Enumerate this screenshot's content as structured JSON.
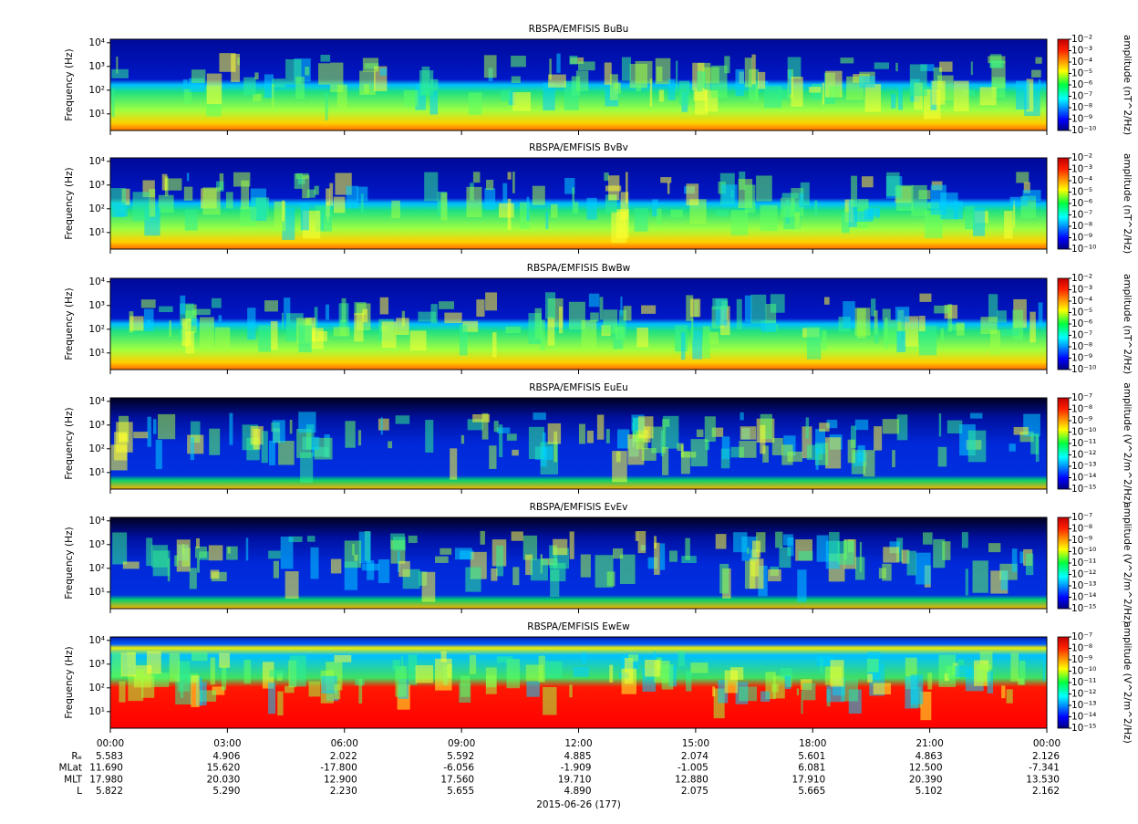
{
  "chart_data": [
    {
      "type": "spectrogram",
      "title": "RBSPA/EMFISIS  BuBu",
      "ylabel": "Frequency (Hz)",
      "log_y": true,
      "ylim": [
        2,
        14000
      ],
      "yticks": [
        {
          "value": 10,
          "label": "10¹"
        },
        {
          "value": 100,
          "label": "10²"
        },
        {
          "value": 1000,
          "label": "10³"
        },
        {
          "value": 10000,
          "label": "10⁴"
        }
      ],
      "colorbar": {
        "label": "amplitude (nT^2/Hz)",
        "lim": [
          1e-10,
          0.01
        ],
        "ticks": [
          {
            "value": 1e-10,
            "label": "10⁻¹⁰"
          },
          {
            "value": 1e-09,
            "label": "10⁻⁹"
          },
          {
            "value": 1e-08,
            "label": "10⁻⁸"
          },
          {
            "value": 1e-07,
            "label": "10⁻⁷"
          },
          {
            "value": 1e-06,
            "label": "10⁻⁶"
          },
          {
            "value": 1e-05,
            "label": "10⁻⁵"
          },
          {
            "value": 0.0001,
            "label": "10⁻⁴"
          },
          {
            "value": 0.001,
            "label": "10⁻³"
          },
          {
            "value": 0.01,
            "label": "10⁻²"
          }
        ]
      }
    },
    {
      "type": "spectrogram",
      "title": "RBSPA/EMFISIS  BvBv",
      "ylabel": "Frequency (Hz)",
      "log_y": true,
      "ylim": [
        2,
        14000
      ],
      "yticks": [
        {
          "value": 10,
          "label": "10¹"
        },
        {
          "value": 100,
          "label": "10²"
        },
        {
          "value": 1000,
          "label": "10³"
        },
        {
          "value": 10000,
          "label": "10⁴"
        }
      ],
      "colorbar": {
        "label": "amplitude (nT^2/Hz)",
        "lim": [
          1e-10,
          0.01
        ],
        "ticks": [
          {
            "value": 1e-10,
            "label": "10⁻¹⁰"
          },
          {
            "value": 1e-09,
            "label": "10⁻⁹"
          },
          {
            "value": 1e-08,
            "label": "10⁻⁸"
          },
          {
            "value": 1e-07,
            "label": "10⁻⁷"
          },
          {
            "value": 1e-06,
            "label": "10⁻⁶"
          },
          {
            "value": 1e-05,
            "label": "10⁻⁵"
          },
          {
            "value": 0.0001,
            "label": "10⁻⁴"
          },
          {
            "value": 0.001,
            "label": "10⁻³"
          },
          {
            "value": 0.01,
            "label": "10⁻²"
          }
        ]
      }
    },
    {
      "type": "spectrogram",
      "title": "RBSPA/EMFISIS  BwBw",
      "ylabel": "Frequency (Hz)",
      "log_y": true,
      "ylim": [
        2,
        14000
      ],
      "yticks": [
        {
          "value": 10,
          "label": "10¹"
        },
        {
          "value": 100,
          "label": "10²"
        },
        {
          "value": 1000,
          "label": "10³"
        },
        {
          "value": 10000,
          "label": "10⁴"
        }
      ],
      "colorbar": {
        "label": "amplitude (nT^2/Hz)",
        "lim": [
          1e-10,
          0.01
        ],
        "ticks": [
          {
            "value": 1e-10,
            "label": "10⁻¹⁰"
          },
          {
            "value": 1e-09,
            "label": "10⁻⁹"
          },
          {
            "value": 1e-08,
            "label": "10⁻⁸"
          },
          {
            "value": 1e-07,
            "label": "10⁻⁷"
          },
          {
            "value": 1e-06,
            "label": "10⁻⁶"
          },
          {
            "value": 1e-05,
            "label": "10⁻⁵"
          },
          {
            "value": 0.0001,
            "label": "10⁻⁴"
          },
          {
            "value": 0.001,
            "label": "10⁻³"
          },
          {
            "value": 0.01,
            "label": "10⁻²"
          }
        ]
      }
    },
    {
      "type": "spectrogram",
      "title": "RBSPA/EMFISIS  EuEu",
      "ylabel": "Frequency (Hz)",
      "log_y": true,
      "ylim": [
        2,
        14000
      ],
      "yticks": [
        {
          "value": 10,
          "label": "10¹"
        },
        {
          "value": 100,
          "label": "10²"
        },
        {
          "value": 1000,
          "label": "10³"
        },
        {
          "value": 10000,
          "label": "10⁴"
        }
      ],
      "colorbar": {
        "label": "amplitude (V^2/m^2/Hz)",
        "lim": [
          1e-15,
          1e-07
        ],
        "ticks": [
          {
            "value": 1e-15,
            "label": "10⁻¹⁵"
          },
          {
            "value": 1e-14,
            "label": "10⁻¹⁴"
          },
          {
            "value": 1e-13,
            "label": "10⁻¹³"
          },
          {
            "value": 1e-12,
            "label": "10⁻¹²"
          },
          {
            "value": 1e-11,
            "label": "10⁻¹¹"
          },
          {
            "value": 1e-10,
            "label": "10⁻¹⁰"
          },
          {
            "value": 1e-09,
            "label": "10⁻⁹"
          },
          {
            "value": 1e-08,
            "label": "10⁻⁸"
          },
          {
            "value": 1e-07,
            "label": "10⁻⁷"
          }
        ]
      }
    },
    {
      "type": "spectrogram",
      "title": "RBSPA/EMFISIS  EvEv",
      "ylabel": "Frequency (Hz)",
      "log_y": true,
      "ylim": [
        2,
        14000
      ],
      "yticks": [
        {
          "value": 10,
          "label": "10¹"
        },
        {
          "value": 100,
          "label": "10²"
        },
        {
          "value": 1000,
          "label": "10³"
        },
        {
          "value": 10000,
          "label": "10⁴"
        }
      ],
      "colorbar": {
        "label": "amplitude (V^2/m^2/Hz)",
        "lim": [
          1e-15,
          1e-07
        ],
        "ticks": [
          {
            "value": 1e-15,
            "label": "10⁻¹⁵"
          },
          {
            "value": 1e-14,
            "label": "10⁻¹⁴"
          },
          {
            "value": 1e-13,
            "label": "10⁻¹³"
          },
          {
            "value": 1e-12,
            "label": "10⁻¹²"
          },
          {
            "value": 1e-11,
            "label": "10⁻¹¹"
          },
          {
            "value": 1e-10,
            "label": "10⁻¹⁰"
          },
          {
            "value": 1e-09,
            "label": "10⁻⁹"
          },
          {
            "value": 1e-08,
            "label": "10⁻⁸"
          },
          {
            "value": 1e-07,
            "label": "10⁻⁷"
          }
        ]
      }
    },
    {
      "type": "spectrogram",
      "title": "RBSPA/EMFISIS  EwEw",
      "ylabel": "Frequency (Hz)",
      "log_y": true,
      "ylim": [
        2,
        14000
      ],
      "yticks": [
        {
          "value": 10,
          "label": "10¹"
        },
        {
          "value": 100,
          "label": "10²"
        },
        {
          "value": 1000,
          "label": "10³"
        },
        {
          "value": 10000,
          "label": "10⁴"
        }
      ],
      "colorbar": {
        "label": "amplitude (V^2/m^2/Hz)",
        "lim": [
          1e-15,
          1e-07
        ],
        "ticks": [
          {
            "value": 1e-15,
            "label": "10⁻¹⁵"
          },
          {
            "value": 1e-14,
            "label": "10⁻¹⁴"
          },
          {
            "value": 1e-13,
            "label": "10⁻¹³"
          },
          {
            "value": 1e-12,
            "label": "10⁻¹²"
          },
          {
            "value": 1e-11,
            "label": "10⁻¹¹"
          },
          {
            "value": 1e-10,
            "label": "10⁻¹⁰"
          },
          {
            "value": 1e-09,
            "label": "10⁻⁹"
          },
          {
            "value": 1e-08,
            "label": "10⁻⁸"
          },
          {
            "value": 1e-07,
            "label": "10⁻⁷"
          }
        ]
      },
      "xlabel": "2015-06-26 (177)",
      "xlim": [
        0,
        24
      ],
      "xticks": [
        {
          "value": 0,
          "label": "00:00"
        },
        {
          "value": 3,
          "label": "03:00"
        },
        {
          "value": 6,
          "label": "06:00"
        },
        {
          "value": 9,
          "label": "09:00"
        },
        {
          "value": 12,
          "label": "12:00"
        },
        {
          "value": 15,
          "label": "15:00"
        },
        {
          "value": 18,
          "label": "18:00"
        },
        {
          "value": 21,
          "label": "21:00"
        },
        {
          "value": 24,
          "label": "00:00"
        }
      ],
      "ephemeris": [
        {
          "label": "Rₑ",
          "values": [
            "5.583",
            "4.906",
            "2.022",
            "5.592",
            "4.885",
            "2.074",
            "5.601",
            "4.863",
            "2.126"
          ]
        },
        {
          "label": "MLat",
          "values": [
            "11.690",
            "15.620",
            "-17.800",
            "-6.056",
            "-1.909",
            "-1.005",
            "6.081",
            "12.500",
            "-7.341"
          ]
        },
        {
          "label": "MLT",
          "values": [
            "17.980",
            "20.030",
            "12.900",
            "17.560",
            "19.710",
            "12.880",
            "17.910",
            "20.390",
            "13.530"
          ]
        },
        {
          "label": "L",
          "values": [
            "5.822",
            "5.290",
            "2.230",
            "5.655",
            "4.890",
            "2.075",
            "5.665",
            "5.102",
            "2.162"
          ]
        }
      ]
    }
  ]
}
